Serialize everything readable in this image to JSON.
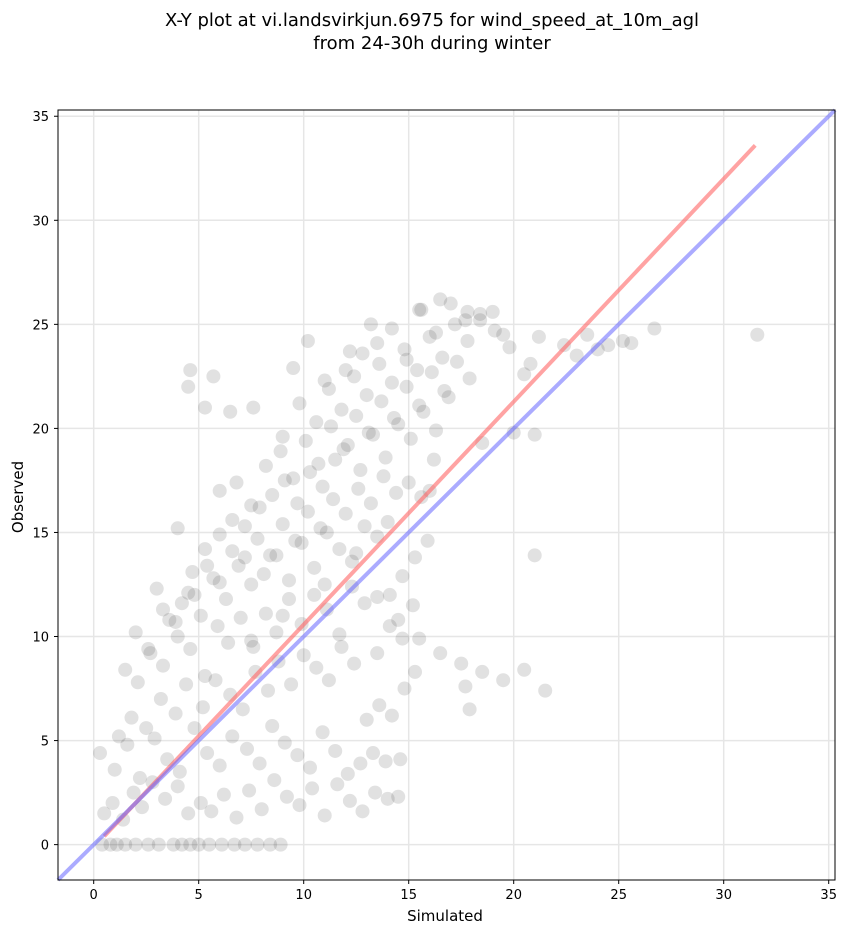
{
  "chart_data": {
    "type": "scatter",
    "title": [
      "X-Y plot at vi.landsvirkjun.6975 for wind_speed_at_10m_agl",
      "from 24-30h during winter"
    ],
    "xlabel": "Simulated",
    "ylabel": "Observed",
    "xlim": [
      -1.7,
      35.3
    ],
    "ylim": [
      -1.7,
      35.3
    ],
    "xticks": [
      0,
      5,
      10,
      15,
      20,
      25,
      30,
      35
    ],
    "yticks": [
      0,
      5,
      10,
      15,
      20,
      25,
      30,
      35
    ],
    "grid": true,
    "point_color": "#333333",
    "point_alpha": 0.15,
    "regression_line": {
      "color": "#ff6666",
      "x": [
        0.5,
        31.5
      ],
      "y": [
        0.4,
        33.6
      ]
    },
    "identity_line": {
      "color": "#6666ff",
      "x": [
        -1.7,
        35.3
      ],
      "y": [
        -1.7,
        35.3
      ]
    },
    "series": [
      {
        "x": [
          0.4,
          0.8,
          1.1,
          1.5,
          2.0,
          2.6,
          3.1,
          3.8,
          4.2,
          4.6,
          5.0,
          5.5,
          6.1,
          6.7,
          7.2,
          7.8,
          8.4,
          8.9,
          0.5,
          0.9,
          1.4,
          1.9,
          2.3,
          2.8,
          3.4,
          4.0,
          4.5,
          5.1,
          5.6,
          6.2,
          6.8,
          7.4,
          8.0,
          8.6,
          9.2,
          9.8,
          10.4,
          11.0,
          11.6,
          12.2,
          12.8,
          13.4,
          14.0,
          14.5,
          0.3,
          1.0,
          1.6,
          2.2,
          2.9,
          3.5,
          4.1,
          4.8,
          5.4,
          6.0,
          6.6,
          7.3,
          7.9,
          8.5,
          9.1,
          9.7,
          10.3,
          10.9,
          11.5,
          12.1,
          12.7,
          13.3,
          13.9,
          14.6,
          1.2,
          1.8,
          2.5,
          3.2,
          3.9,
          4.4,
          5.2,
          5.8,
          6.5,
          7.1,
          7.7,
          8.3,
          8.8,
          9.4,
          10.0,
          10.6,
          11.2,
          11.8,
          12.4,
          13.0,
          13.6,
          14.2,
          14.8,
          15.3,
          1.5,
          2.1,
          2.7,
          3.3,
          4.0,
          4.6,
          5.3,
          5.9,
          6.4,
          7.0,
          7.6,
          8.2,
          8.7,
          9.3,
          9.9,
          10.5,
          11.1,
          11.7,
          12.3,
          12.9,
          13.5,
          14.1,
          14.7,
          15.2,
          2.0,
          2.6,
          3.3,
          3.9,
          4.5,
          5.1,
          5.7,
          6.3,
          6.9,
          7.5,
          8.1,
          8.7,
          9.3,
          9.9,
          10.5,
          11.1,
          11.7,
          12.3,
          12.9,
          13.5,
          14.1,
          14.7,
          15.3,
          15.9,
          3.0,
          3.6,
          4.2,
          4.8,
          5.4,
          6.0,
          6.6,
          7.2,
          7.8,
          8.4,
          9.0,
          9.6,
          10.2,
          10.8,
          11.4,
          12.0,
          12.6,
          13.2,
          13.8,
          14.4,
          15.0,
          15.6,
          16.2,
          4.0,
          4.7,
          5.3,
          6.0,
          6.6,
          7.2,
          7.9,
          8.5,
          9.1,
          9.7,
          10.3,
          10.9,
          11.5,
          12.1,
          12.7,
          13.3,
          13.9,
          14.5,
          15.1,
          15.7,
          16.3,
          16.9,
          6.0,
          6.8,
          7.5,
          8.2,
          8.9,
          9.5,
          10.1,
          10.7,
          11.3,
          11.9,
          12.5,
          13.1,
          13.7,
          14.3,
          14.9,
          15.5,
          16.1,
          16.7,
          17.3,
          17.9,
          9.0,
          9.8,
          10.6,
          11.2,
          11.8,
          12.4,
          13.0,
          13.6,
          14.2,
          14.8,
          15.4,
          16.0,
          16.6,
          17.2,
          17.8,
          18.4,
          19.0,
          11.0,
          12.0,
          12.8,
          13.5,
          14.2,
          14.9,
          15.6,
          16.3,
          17.0,
          17.7,
          18.4,
          19.1,
          19.8,
          20.5,
          12.5,
          13.5,
          14.5,
          15.5,
          16.5,
          17.5,
          18.5,
          19.5,
          20.5,
          21.5,
          4.5,
          4.6,
          5.3,
          5.7,
          6.5,
          7.6,
          10.2,
          9.5,
          12.2,
          13.2,
          15.5,
          16.5,
          17.8,
          19.5,
          20.8,
          21.2,
          22.4,
          23.0,
          23.5,
          24.0,
          24.5,
          25.2,
          25.6,
          26.7,
          31.6,
          17.7,
          17.9,
          20.0,
          21.0,
          21.0,
          18.5,
          16.0,
          14.0,
          11.0,
          9.0,
          7.5
        ],
        "y": [
          0.0,
          0.0,
          0.0,
          0.0,
          0.0,
          0.0,
          0.0,
          0.0,
          0.0,
          0.0,
          0.0,
          0.0,
          0.0,
          0.0,
          0.0,
          0.0,
          0.0,
          0.0,
          1.5,
          2.0,
          1.2,
          2.5,
          1.8,
          3.0,
          2.2,
          2.8,
          1.5,
          2.0,
          1.6,
          2.4,
          1.3,
          2.6,
          1.7,
          3.1,
          2.3,
          1.9,
          2.7,
          1.4,
          2.9,
          2.1,
          1.6,
          2.5,
          2.2,
          2.3,
          4.4,
          3.6,
          4.8,
          3.2,
          5.1,
          4.1,
          3.5,
          5.6,
          4.4,
          3.8,
          5.2,
          4.6,
          3.9,
          5.7,
          4.9,
          4.3,
          3.7,
          5.4,
          4.5,
          3.4,
          3.9,
          4.4,
          4.0,
          4.1,
          5.2,
          6.1,
          5.6,
          7.0,
          6.3,
          7.7,
          6.6,
          7.9,
          7.2,
          6.5,
          8.3,
          7.4,
          8.8,
          7.7,
          9.1,
          8.5,
          7.9,
          9.5,
          8.7,
          6.0,
          6.7,
          6.2,
          7.5,
          8.3,
          8.4,
          7.8,
          9.2,
          8.6,
          10.0,
          9.4,
          8.1,
          10.5,
          9.7,
          10.9,
          9.5,
          11.1,
          10.2,
          11.8,
          10.6,
          12.0,
          11.3,
          10.1,
          12.4,
          11.6,
          9.2,
          10.5,
          9.9,
          11.5,
          10.2,
          9.4,
          11.3,
          10.7,
          12.1,
          11.0,
          12.8,
          11.8,
          13.4,
          12.5,
          13.0,
          13.9,
          12.7,
          14.5,
          13.3,
          15.0,
          14.2,
          13.6,
          15.3,
          14.8,
          12.0,
          12.9,
          13.8,
          14.6,
          12.3,
          10.8,
          11.6,
          12.0,
          13.4,
          12.6,
          14.1,
          13.8,
          14.7,
          13.9,
          15.4,
          14.6,
          16.0,
          15.2,
          16.6,
          15.9,
          17.1,
          16.4,
          17.7,
          16.9,
          17.4,
          16.7,
          18.5,
          15.2,
          13.1,
          14.2,
          14.9,
          15.6,
          15.3,
          16.2,
          16.8,
          17.5,
          16.4,
          17.9,
          17.2,
          18.5,
          19.2,
          18.0,
          19.7,
          18.6,
          20.2,
          19.5,
          20.8,
          19.9,
          21.5,
          17.0,
          17.4,
          16.3,
          18.2,
          18.9,
          17.6,
          19.4,
          18.3,
          20.1,
          19.0,
          20.6,
          19.8,
          21.3,
          20.5,
          22.0,
          21.1,
          22.7,
          21.8,
          23.2,
          22.4,
          19.6,
          21.2,
          20.3,
          21.9,
          20.9,
          22.5,
          21.6,
          23.1,
          22.2,
          23.8,
          22.8,
          24.4,
          23.4,
          25.0,
          24.2,
          25.2,
          25.6,
          22.3,
          22.8,
          23.6,
          24.1,
          24.8,
          23.3,
          25.7,
          24.6,
          26.0,
          25.2,
          25.5,
          24.7,
          23.9,
          22.6,
          14.0,
          11.9,
          10.8,
          9.9,
          9.2,
          8.7,
          8.3,
          7.9,
          8.4,
          7.4,
          22.0,
          22.8,
          21.0,
          22.5,
          20.8,
          21.0,
          24.2,
          22.9,
          23.7,
          25.0,
          25.7,
          26.2,
          25.6,
          24.5,
          23.1,
          24.4,
          24.0,
          23.5,
          24.5,
          23.8,
          24.0,
          24.2,
          24.1,
          24.8,
          24.5,
          7.6,
          6.5,
          19.8,
          19.7,
          13.9,
          19.3,
          17.0,
          15.5,
          12.5,
          11.0,
          9.8
        ]
      }
    ]
  }
}
